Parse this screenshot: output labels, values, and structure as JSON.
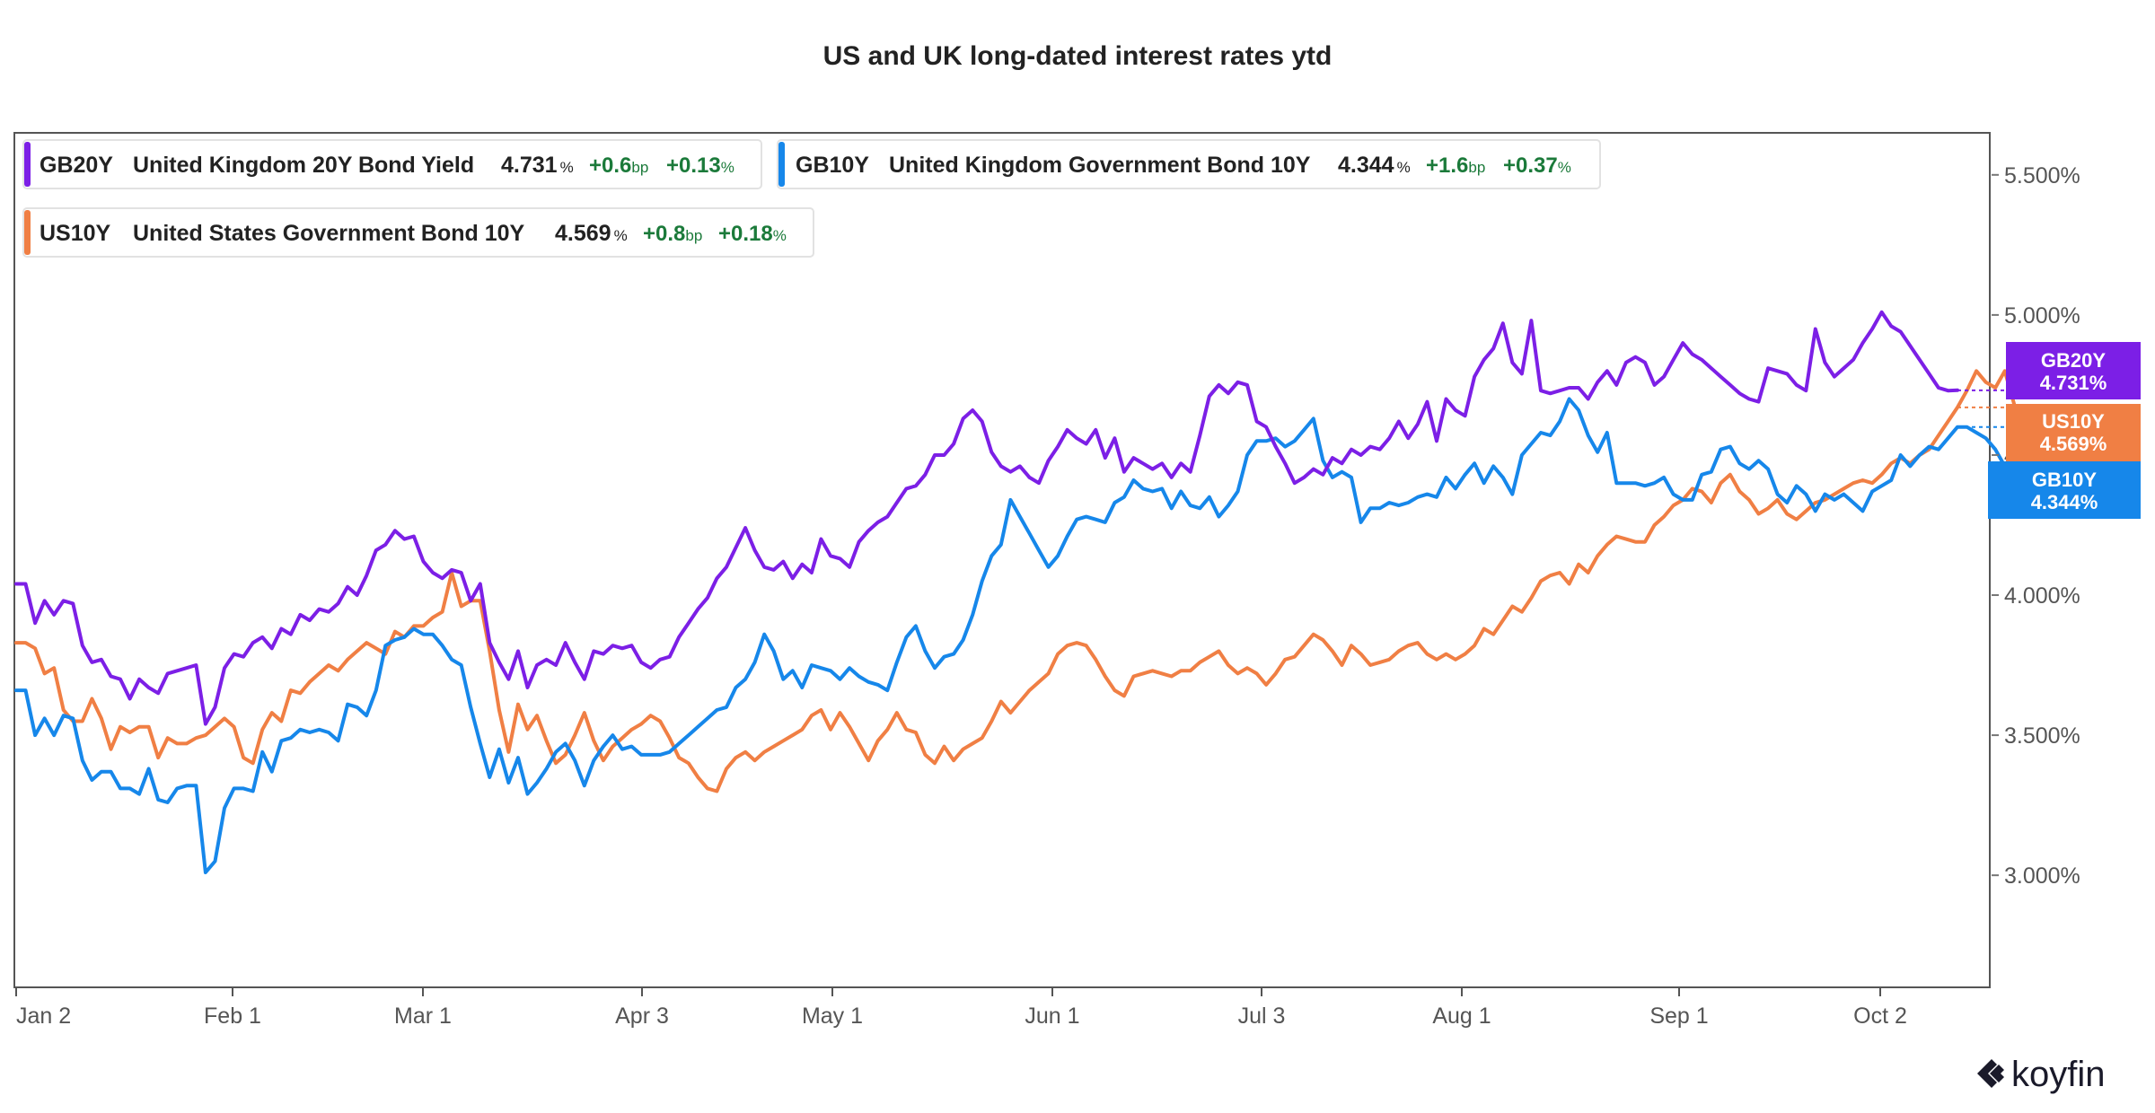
{
  "chart_data": {
    "type": "line",
    "title": "US and UK long-dated interest rates ytd",
    "x_tick_labels": [
      "Jan 2",
      "Feb 1",
      "Mar 1",
      "Apr 3",
      "May 1",
      "Jun 1",
      "Jul 3",
      "Aug 1",
      "Sep 1",
      "Oct 2"
    ],
    "y_tick_labels": [
      "3.000%",
      "3.500%",
      "4.000%",
      "4.500%",
      "5.000%",
      "5.500%"
    ],
    "ylim": [
      2.6,
      5.65
    ],
    "grid": false,
    "legend_position": "top-left",
    "series": [
      {
        "name": "GB20Y",
        "legend_name": "United Kingdom 20Y Bond Yield",
        "color": "#7c1fe6",
        "last_value_label": "4.731",
        "change_bp_label": "+0.6",
        "change_pct_label": "+0.13",
        "tag_label": "4.731%",
        "values": [
          4.04,
          4.04,
          3.9,
          3.98,
          3.93,
          3.98,
          3.97,
          3.82,
          3.76,
          3.77,
          3.71,
          3.7,
          3.63,
          3.7,
          3.67,
          3.65,
          3.72,
          3.73,
          3.74,
          3.75,
          3.54,
          3.6,
          3.74,
          3.79,
          3.78,
          3.83,
          3.85,
          3.81,
          3.88,
          3.86,
          3.93,
          3.91,
          3.95,
          3.94,
          3.97,
          4.03,
          4.0,
          4.07,
          4.16,
          4.18,
          4.23,
          4.2,
          4.21,
          4.12,
          4.08,
          4.06,
          4.09,
          4.08,
          3.98,
          4.04,
          3.83,
          3.76,
          3.7,
          3.8,
          3.67,
          3.75,
          3.77,
          3.75,
          3.83,
          3.76,
          3.7,
          3.8,
          3.79,
          3.82,
          3.81,
          3.82,
          3.76,
          3.74,
          3.77,
          3.78,
          3.85,
          3.9,
          3.95,
          3.99,
          4.06,
          4.1,
          4.17,
          4.24,
          4.16,
          4.1,
          4.09,
          4.12,
          4.06,
          4.11,
          4.08,
          4.2,
          4.14,
          4.13,
          4.1,
          4.19,
          4.23,
          4.26,
          4.28,
          4.33,
          4.38,
          4.39,
          4.43,
          4.5,
          4.5,
          4.54,
          4.63,
          4.66,
          4.62,
          4.51,
          4.46,
          4.44,
          4.46,
          4.42,
          4.4,
          4.48,
          4.53,
          4.59,
          4.56,
          4.54,
          4.59,
          4.49,
          4.56,
          4.44,
          4.49,
          4.47,
          4.45,
          4.47,
          4.42,
          4.47,
          4.44,
          4.57,
          4.71,
          4.75,
          4.72,
          4.76,
          4.75,
          4.62,
          4.6,
          4.53,
          4.47,
          4.4,
          4.42,
          4.45,
          4.43,
          4.49,
          4.47,
          4.52,
          4.5,
          4.53,
          4.52,
          4.56,
          4.62,
          4.56,
          4.61,
          4.69,
          4.55,
          4.7,
          4.66,
          4.64,
          4.78,
          4.84,
          4.88,
          4.97,
          4.83,
          4.79,
          4.98,
          4.73,
          4.72,
          4.73,
          4.74,
          4.74,
          4.7,
          4.76,
          4.8,
          4.75,
          4.83,
          4.85,
          4.83,
          4.75,
          4.78,
          4.84,
          4.9,
          4.86,
          4.84,
          4.81,
          4.78,
          4.75,
          4.72,
          4.7,
          4.69,
          4.81,
          4.8,
          4.79,
          4.75,
          4.73,
          4.95,
          4.83,
          4.78,
          4.81,
          4.84,
          4.9,
          4.95,
          5.01,
          4.96,
          4.94,
          4.89,
          4.84,
          4.79,
          4.74,
          4.73,
          4.731
        ]
      },
      {
        "name": "GB10Y",
        "legend_name": "United Kingdom Government Bond 10Y",
        "color": "#1687ea",
        "last_value_label": "4.344",
        "change_bp_label": "+1.6",
        "change_pct_label": "+0.37",
        "tag_label": "4.344%",
        "values": [
          3.66,
          3.66,
          3.5,
          3.56,
          3.5,
          3.57,
          3.56,
          3.41,
          3.34,
          3.37,
          3.37,
          3.31,
          3.31,
          3.29,
          3.38,
          3.27,
          3.26,
          3.31,
          3.32,
          3.32,
          3.01,
          3.05,
          3.24,
          3.31,
          3.31,
          3.3,
          3.44,
          3.37,
          3.48,
          3.49,
          3.52,
          3.51,
          3.52,
          3.51,
          3.48,
          3.61,
          3.6,
          3.57,
          3.66,
          3.82,
          3.84,
          3.85,
          3.88,
          3.86,
          3.86,
          3.82,
          3.77,
          3.75,
          3.6,
          3.47,
          3.35,
          3.45,
          3.33,
          3.42,
          3.29,
          3.33,
          3.38,
          3.44,
          3.47,
          3.41,
          3.32,
          3.41,
          3.46,
          3.5,
          3.45,
          3.46,
          3.43,
          3.43,
          3.43,
          3.44,
          3.47,
          3.5,
          3.53,
          3.56,
          3.59,
          3.6,
          3.67,
          3.7,
          3.76,
          3.86,
          3.8,
          3.7,
          3.73,
          3.67,
          3.75,
          3.74,
          3.73,
          3.7,
          3.74,
          3.71,
          3.69,
          3.68,
          3.66,
          3.76,
          3.85,
          3.89,
          3.8,
          3.74,
          3.78,
          3.79,
          3.84,
          3.93,
          4.05,
          4.14,
          4.18,
          4.34,
          4.28,
          4.22,
          4.16,
          4.1,
          4.14,
          4.21,
          4.27,
          4.28,
          4.27,
          4.26,
          4.33,
          4.35,
          4.41,
          4.38,
          4.37,
          4.38,
          4.31,
          4.37,
          4.32,
          4.31,
          4.35,
          4.28,
          4.32,
          4.37,
          4.5,
          4.55,
          4.55,
          4.56,
          4.53,
          4.55,
          4.59,
          4.63,
          4.48,
          4.42,
          4.44,
          4.42,
          4.26,
          4.31,
          4.31,
          4.33,
          4.32,
          4.33,
          4.35,
          4.36,
          4.35,
          4.42,
          4.38,
          4.43,
          4.47,
          4.4,
          4.46,
          4.42,
          4.36,
          4.5,
          4.54,
          4.58,
          4.57,
          4.62,
          4.7,
          4.66,
          4.57,
          4.51,
          4.58,
          4.4,
          4.4,
          4.4,
          4.39,
          4.4,
          4.42,
          4.36,
          4.34,
          4.34,
          4.43,
          4.44,
          4.52,
          4.53,
          4.47,
          4.45,
          4.48,
          4.45,
          4.36,
          4.33,
          4.39,
          4.36,
          4.3,
          4.36,
          4.34,
          4.36,
          4.33,
          4.3,
          4.37,
          4.39,
          4.41,
          4.5,
          4.46,
          4.5,
          4.53,
          4.52,
          4.56,
          4.6,
          4.6,
          4.58,
          4.56,
          4.52,
          4.46,
          4.42,
          4.34,
          4.344
        ]
      },
      {
        "name": "US10Y",
        "legend_name": "United States Government Bond 10Y",
        "color": "#f07f44",
        "last_value_label": "4.569",
        "change_bp_label": "+0.8",
        "change_pct_label": "+0.18",
        "tag_label": "4.569%",
        "values": [
          3.83,
          3.83,
          3.81,
          3.72,
          3.74,
          3.59,
          3.55,
          3.55,
          3.63,
          3.56,
          3.45,
          3.53,
          3.51,
          3.53,
          3.53,
          3.42,
          3.49,
          3.47,
          3.47,
          3.49,
          3.5,
          3.53,
          3.56,
          3.53,
          3.42,
          3.4,
          3.52,
          3.58,
          3.55,
          3.66,
          3.65,
          3.69,
          3.72,
          3.75,
          3.73,
          3.77,
          3.8,
          3.83,
          3.81,
          3.79,
          3.87,
          3.85,
          3.89,
          3.89,
          3.92,
          3.94,
          4.08,
          3.96,
          3.98,
          3.98,
          3.8,
          3.59,
          3.44,
          3.61,
          3.52,
          3.57,
          3.48,
          3.4,
          3.43,
          3.5,
          3.58,
          3.48,
          3.41,
          3.46,
          3.49,
          3.52,
          3.54,
          3.57,
          3.55,
          3.49,
          3.42,
          3.4,
          3.35,
          3.31,
          3.3,
          3.38,
          3.42,
          3.44,
          3.41,
          3.44,
          3.46,
          3.48,
          3.5,
          3.52,
          3.57,
          3.59,
          3.52,
          3.58,
          3.53,
          3.47,
          3.41,
          3.48,
          3.52,
          3.58,
          3.52,
          3.51,
          3.43,
          3.4,
          3.46,
          3.41,
          3.45,
          3.47,
          3.49,
          3.55,
          3.62,
          3.58,
          3.62,
          3.66,
          3.69,
          3.72,
          3.79,
          3.82,
          3.83,
          3.82,
          3.77,
          3.71,
          3.66,
          3.64,
          3.71,
          3.72,
          3.73,
          3.72,
          3.71,
          3.73,
          3.73,
          3.76,
          3.78,
          3.8,
          3.75,
          3.72,
          3.74,
          3.72,
          3.68,
          3.72,
          3.77,
          3.78,
          3.82,
          3.86,
          3.84,
          3.8,
          3.75,
          3.82,
          3.79,
          3.75,
          3.76,
          3.77,
          3.8,
          3.82,
          3.83,
          3.79,
          3.77,
          3.79,
          3.77,
          3.79,
          3.82,
          3.88,
          3.86,
          3.91,
          3.96,
          3.94,
          3.99,
          4.05,
          4.07,
          4.08,
          4.04,
          4.11,
          4.08,
          4.14,
          4.18,
          4.21,
          4.2,
          4.19,
          4.19,
          4.25,
          4.28,
          4.32,
          4.34,
          4.38,
          4.37,
          4.33,
          4.4,
          4.43,
          4.37,
          4.34,
          4.29,
          4.31,
          4.34,
          4.29,
          4.27,
          4.3,
          4.33,
          4.34,
          4.36,
          4.38,
          4.4,
          4.41,
          4.4,
          4.43,
          4.47,
          4.49,
          4.47,
          4.5,
          4.52,
          4.57,
          4.62,
          4.67,
          4.73,
          4.8,
          4.76,
          4.74,
          4.8,
          4.68,
          4.62,
          4.6,
          4.58,
          4.569
        ]
      }
    ]
  },
  "legend": {
    "pct_unit": "%",
    "bp_unit": "bp"
  },
  "brand": {
    "name": "koyfin"
  }
}
